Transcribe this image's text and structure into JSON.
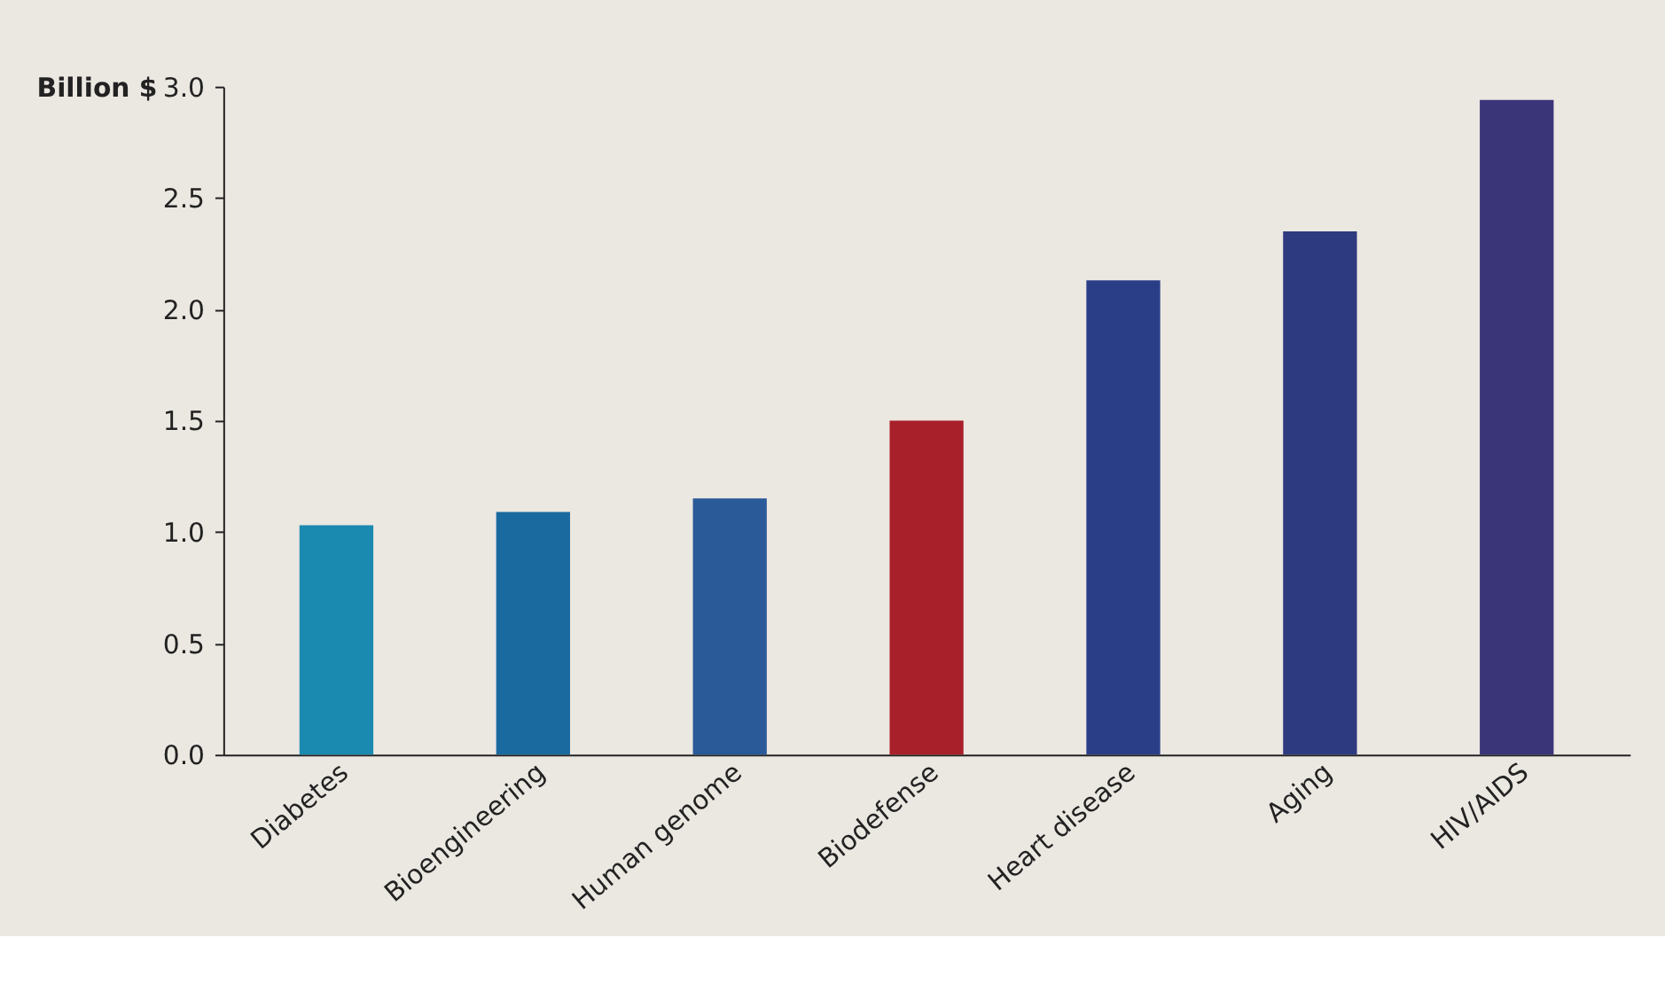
{
  "chart_data": {
    "type": "bar",
    "ylabel": "Billion $",
    "categories": [
      "Diabetes",
      "Bioengineering",
      "Human genome",
      "Biodefense",
      "Heart disease",
      "Aging",
      "HIV/AIDS"
    ],
    "values": [
      1.03,
      1.09,
      1.15,
      1.5,
      2.13,
      2.35,
      2.94
    ],
    "colors": [
      "#1a8ab0",
      "#1a6aa0",
      "#2a5a98",
      "#a8202a",
      "#2a3e88",
      "#2e3a80",
      "#3a3478"
    ],
    "ylim": [
      0,
      3
    ],
    "yticks": [
      {
        "value": 0,
        "label": "0.0"
      },
      {
        "value": 0.5,
        "label": "0.5"
      },
      {
        "value": 1,
        "label": "1.0"
      },
      {
        "value": 1.5,
        "label": "1.5"
      },
      {
        "value": 2,
        "label": "2.0"
      },
      {
        "value": 2.5,
        "label": "2.5"
      },
      {
        "value": 3,
        "label": "3.0"
      }
    ],
    "grid": false
  }
}
